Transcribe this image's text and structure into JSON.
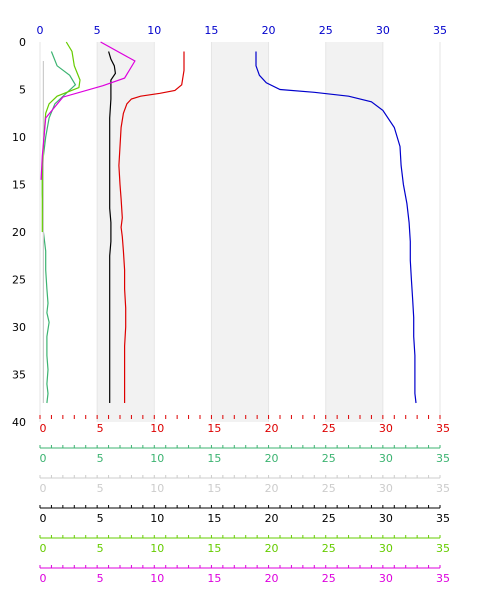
{
  "chart_data": {
    "type": "line",
    "y_axis": {
      "range": [
        0,
        40
      ],
      "inverted": true,
      "ticks": [
        0,
        5,
        10,
        15,
        20,
        25,
        30,
        35,
        40
      ],
      "tick_labels": [
        "0",
        "5",
        "10",
        "15",
        "20",
        "25",
        "30",
        "35",
        "40"
      ]
    },
    "bands": [
      [
        5,
        10
      ],
      [
        15,
        20
      ],
      [
        25,
        30
      ]
    ],
    "band_color": "#f2f2f2",
    "x_axes": [
      {
        "id": "top-blue",
        "position": "top",
        "color": "#0000cc",
        "range": [
          0,
          35
        ],
        "ticks": [
          0,
          5,
          10,
          15,
          20,
          25,
          30,
          35
        ],
        "tick_labels": [
          "0",
          "5",
          "10",
          "15",
          "20",
          "25",
          "30",
          "35"
        ]
      },
      {
        "id": "bottom-red",
        "position": "bottom",
        "color": "#dd0000",
        "range": [
          0,
          35
        ],
        "ticks": [
          0,
          5,
          10,
          15,
          20,
          25,
          30,
          35
        ],
        "tick_labels": [
          "0",
          "5",
          "10",
          "15",
          "20",
          "25",
          "30",
          "35"
        ]
      },
      {
        "id": "bottom-seagreen",
        "position": "bottom",
        "color": "#3cb371",
        "range": [
          0,
          35
        ],
        "ticks": [
          0,
          5,
          10,
          15,
          20,
          25,
          30,
          35
        ],
        "tick_labels": [
          "0",
          "5",
          "10",
          "15",
          "20",
          "25",
          "30",
          "35"
        ]
      },
      {
        "id": "bottom-lightgray",
        "position": "bottom",
        "color": "#cccccc",
        "range": [
          0,
          35
        ],
        "ticks": [
          0,
          5,
          10,
          15,
          20,
          25,
          30,
          35
        ],
        "tick_labels": [
          "0",
          "5",
          "10",
          "15",
          "20",
          "25",
          "30",
          "35"
        ]
      },
      {
        "id": "bottom-black",
        "position": "bottom",
        "color": "#000000",
        "range": [
          0,
          35
        ],
        "ticks": [
          0,
          5,
          10,
          15,
          20,
          25,
          30,
          35
        ],
        "tick_labels": [
          "0",
          "5",
          "10",
          "15",
          "20",
          "25",
          "30",
          "35"
        ]
      },
      {
        "id": "bottom-limegreen",
        "position": "bottom",
        "color": "#66cc00",
        "range": [
          0,
          35
        ],
        "ticks": [
          0,
          5,
          10,
          15,
          20,
          25,
          30,
          35
        ],
        "tick_labels": [
          "0",
          "5",
          "10",
          "15",
          "20",
          "25",
          "30",
          "35"
        ]
      },
      {
        "id": "bottom-magenta",
        "position": "bottom",
        "color": "#dd00dd",
        "range": [
          0,
          35
        ],
        "ticks": [
          0,
          5,
          10,
          15,
          20,
          25,
          30,
          35
        ],
        "tick_labels": [
          "0",
          "5",
          "10",
          "15",
          "20",
          "25",
          "30",
          "35"
        ]
      }
    ],
    "series": [
      {
        "axis": "top-blue",
        "color": "#0000cc",
        "points": [
          [
            18.9,
            1
          ],
          [
            18.9,
            2.5
          ],
          [
            19.2,
            3.5
          ],
          [
            19.8,
            4.3
          ],
          [
            21,
            5
          ],
          [
            24,
            5.3
          ],
          [
            27,
            5.7
          ],
          [
            29,
            6.3
          ],
          [
            30,
            7.2
          ],
          [
            31,
            9
          ],
          [
            31.5,
            11
          ],
          [
            31.6,
            13
          ],
          [
            31.8,
            15
          ],
          [
            32.1,
            17
          ],
          [
            32.3,
            19
          ],
          [
            32.4,
            21
          ],
          [
            32.4,
            23
          ],
          [
            32.5,
            25
          ],
          [
            32.6,
            27
          ],
          [
            32.7,
            29
          ],
          [
            32.7,
            31
          ],
          [
            32.8,
            33
          ],
          [
            32.8,
            35
          ],
          [
            32.8,
            37
          ],
          [
            32.9,
            38
          ]
        ]
      },
      {
        "axis": "bottom-red",
        "color": "#dd0000",
        "points": [
          [
            12.6,
            1
          ],
          [
            12.6,
            3
          ],
          [
            12.4,
            4.5
          ],
          [
            11.8,
            5.1
          ],
          [
            10.5,
            5.4
          ],
          [
            8.8,
            5.7
          ],
          [
            8,
            6
          ],
          [
            7.6,
            6.5
          ],
          [
            7.3,
            7.5
          ],
          [
            7.1,
            9
          ],
          [
            7,
            11
          ],
          [
            6.9,
            13
          ],
          [
            7,
            15
          ],
          [
            7.1,
            16.5
          ],
          [
            7.2,
            18.5
          ],
          [
            7.1,
            19.5
          ],
          [
            7.2,
            20.5
          ],
          [
            7.3,
            22
          ],
          [
            7.4,
            24
          ],
          [
            7.4,
            26
          ],
          [
            7.5,
            28
          ],
          [
            7.5,
            30
          ],
          [
            7.4,
            32
          ],
          [
            7.4,
            34
          ],
          [
            7.4,
            36
          ],
          [
            7.4,
            38
          ]
        ]
      },
      {
        "axis": "bottom-seagreen",
        "color": "#3cb371",
        "points": [
          [
            1,
            1
          ],
          [
            1.5,
            2.5
          ],
          [
            2.6,
            3.5
          ],
          [
            3.1,
            4.5
          ],
          [
            2.2,
            5.5
          ],
          [
            1.3,
            6.5
          ],
          [
            0.8,
            8
          ],
          [
            0.5,
            10
          ],
          [
            0.3,
            12
          ],
          [
            0.2,
            14
          ],
          [
            0.2,
            16
          ],
          [
            0.3,
            18
          ],
          [
            0.3,
            20
          ],
          [
            0.5,
            22
          ],
          [
            0.5,
            24
          ],
          [
            0.6,
            26
          ],
          [
            0.7,
            27.5
          ],
          [
            0.6,
            28.5
          ],
          [
            0.8,
            29.5
          ],
          [
            0.6,
            31
          ],
          [
            0.6,
            33
          ],
          [
            0.7,
            34.5
          ],
          [
            0.6,
            36
          ],
          [
            0.7,
            37
          ],
          [
            0.6,
            38
          ]
        ]
      },
      {
        "axis": "bottom-lightgray",
        "color": "#cccccc",
        "points": [
          [
            0.3,
            2
          ],
          [
            0.3,
            38
          ]
        ]
      },
      {
        "axis": "bottom-black",
        "color": "#000000",
        "points": [
          [
            6,
            1
          ],
          [
            6.2,
            1.8
          ],
          [
            6.5,
            2.5
          ],
          [
            6.6,
            3.3
          ],
          [
            6.2,
            4
          ],
          [
            6.2,
            5
          ],
          [
            6.2,
            6
          ],
          [
            6.1,
            8
          ],
          [
            6.1,
            10
          ],
          [
            6.1,
            12
          ],
          [
            6.1,
            14
          ],
          [
            6.1,
            16
          ],
          [
            6.1,
            17.5
          ],
          [
            6.2,
            19
          ],
          [
            6.2,
            21
          ],
          [
            6.1,
            22.5
          ],
          [
            6.1,
            24
          ],
          [
            6.1,
            26
          ],
          [
            6.1,
            28
          ],
          [
            6.1,
            30
          ],
          [
            6.1,
            32
          ],
          [
            6.1,
            34
          ],
          [
            6.1,
            36
          ],
          [
            6.1,
            38
          ]
        ]
      },
      {
        "axis": "bottom-limegreen",
        "color": "#66cc00",
        "points": [
          [
            2.3,
            0
          ],
          [
            2.8,
            1
          ],
          [
            3,
            2.5
          ],
          [
            3.5,
            4
          ],
          [
            3.4,
            4.8
          ],
          [
            1.5,
            5.7
          ],
          [
            0.8,
            6.5
          ],
          [
            0.5,
            7.5
          ],
          [
            0.4,
            9
          ],
          [
            0.3,
            11
          ],
          [
            0.2,
            13
          ],
          [
            0.2,
            15
          ],
          [
            0.2,
            17
          ],
          [
            0.2,
            19
          ],
          [
            0.2,
            20
          ]
        ]
      },
      {
        "axis": "bottom-magenta",
        "color": "#dd00dd",
        "points": [
          [
            5.3,
            0
          ],
          [
            8.3,
            2
          ],
          [
            7.4,
            3.8
          ],
          [
            5.5,
            4.6
          ],
          [
            2,
            5.8
          ],
          [
            0.5,
            8
          ],
          [
            0.2,
            12
          ],
          [
            0.1,
            14.5
          ]
        ]
      }
    ]
  }
}
